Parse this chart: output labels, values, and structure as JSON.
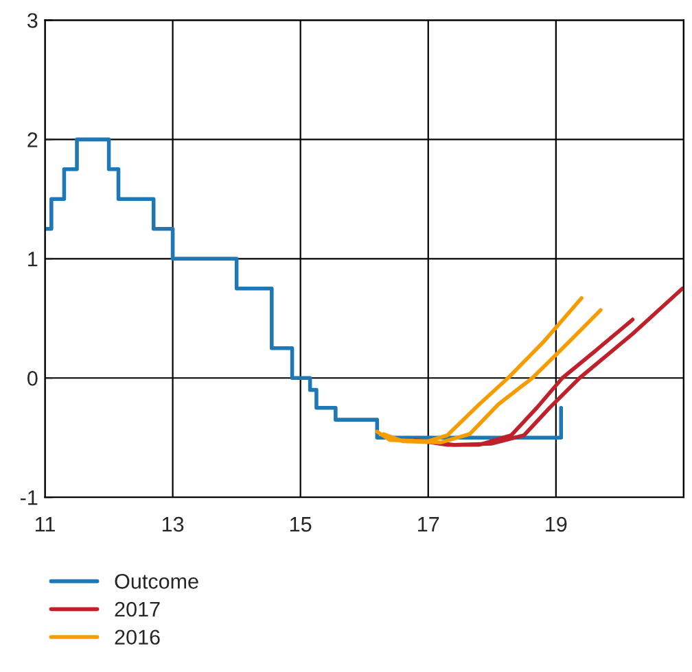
{
  "chart_data": {
    "type": "line",
    "xlim": [
      11,
      21
    ],
    "xticks": [
      11,
      13,
      15,
      17,
      19,
      {
        "value": 21,
        "label": null
      }
    ],
    "ylim": [
      -1,
      3
    ],
    "yticks": [
      -1,
      0,
      1,
      2,
      3
    ],
    "grid": true,
    "legend": "bottom left",
    "series": [
      {
        "name": "Outcome",
        "type": "step",
        "color": "#1f77b4",
        "x": [
          11,
          11.1,
          11.3,
          11.5,
          12.0,
          12.15,
          12.7,
          13.0,
          14.0,
          14.55,
          14.87,
          15.15,
          15.25,
          15.55,
          16.2,
          19.08,
          19.08
        ],
        "values": [
          1.25,
          1.5,
          1.75,
          2.0,
          1.75,
          1.5,
          1.25,
          1.0,
          0.75,
          0.25,
          0.0,
          -0.1,
          -0.25,
          -0.35,
          -0.5,
          -0.5,
          -0.25
        ]
      },
      {
        "name": "2017",
        "color": "#c0202a",
        "x": [
          16.8,
          17.3,
          17.8,
          18.3,
          18.7,
          19.1,
          19.6,
          20.2
        ],
        "values": [
          -0.52,
          -0.56,
          -0.56,
          -0.48,
          -0.25,
          0,
          0.22,
          0.49
        ]
      },
      {
        "color": "#c0202a",
        "x": [
          16.8,
          17.4,
          18.0,
          18.5,
          18.9,
          19.37,
          20.2,
          20.98
        ],
        "values": [
          -0.52,
          -0.56,
          -0.55,
          -0.48,
          -0.25,
          0,
          0.37,
          0.75
        ]
      },
      {
        "name": "2016",
        "color": "#f59d00",
        "x": [
          16.2,
          16.4,
          17.0,
          17.3,
          17.8,
          18.25,
          18.8,
          19.4
        ],
        "values": [
          -0.45,
          -0.52,
          -0.53,
          -0.48,
          -0.22,
          0,
          0.3,
          0.67
        ]
      },
      {
        "color": "#f59d00",
        "x": [
          16.3,
          16.6,
          17.2,
          17.65,
          18.1,
          18.63,
          19.2,
          19.7
        ],
        "values": [
          -0.47,
          -0.53,
          -0.54,
          -0.47,
          -0.22,
          0,
          0.3,
          0.57
        ]
      }
    ]
  }
}
